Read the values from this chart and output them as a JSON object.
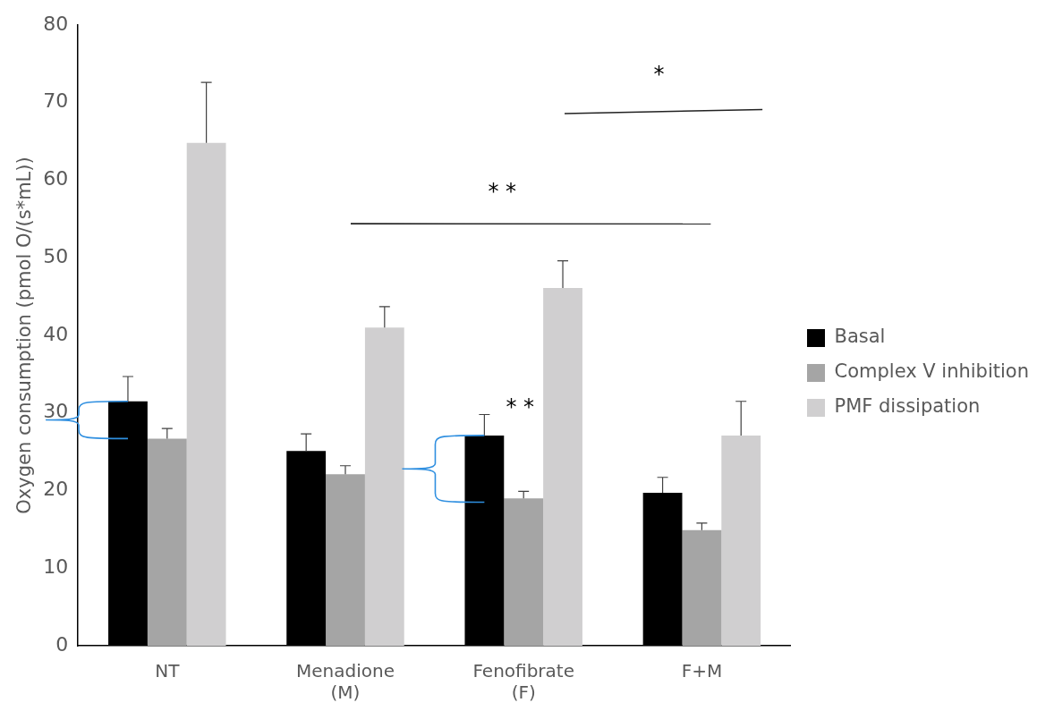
{
  "chart_data": {
    "type": "bar",
    "ylabel": "Oxygen consumption (pmol O/(s*mL))",
    "categories": [
      "NT",
      "Menadione (M)",
      "Fenofibrate (F)",
      "F+M"
    ],
    "series": [
      {
        "name": "Basal",
        "color": "#000000",
        "values": [
          31.5,
          25.1,
          27.1,
          19.7
        ],
        "errors": [
          [
            31.5,
            34.7
          ],
          [
            25.1,
            27.3
          ],
          [
            27.1,
            29.8
          ],
          [
            19.7,
            21.7
          ]
        ]
      },
      {
        "name": "Complex V inhibition",
        "color": "#a5a5a5",
        "values": [
          26.7,
          22.1,
          19.0,
          14.9
        ],
        "errors": [
          [
            26.7,
            28.0
          ],
          [
            22.1,
            23.2
          ],
          [
            19.0,
            19.9
          ],
          [
            14.9,
            15.8
          ]
        ]
      },
      {
        "name": "PMF dissipation",
        "color": "#d0cfd0",
        "values": [
          64.8,
          41.0,
          46.1,
          27.1
        ],
        "errors": [
          [
            64.8,
            72.6
          ],
          [
            41.0,
            43.7
          ],
          [
            46.1,
            49.6
          ],
          [
            27.1,
            31.5
          ]
        ]
      }
    ],
    "ylim": [
      0,
      80
    ],
    "yticks": [
      0,
      10,
      20,
      30,
      40,
      50,
      60,
      70,
      80
    ],
    "grid": false,
    "legend": "right",
    "annotations": [
      "*",
      "* *",
      "* *"
    ]
  }
}
